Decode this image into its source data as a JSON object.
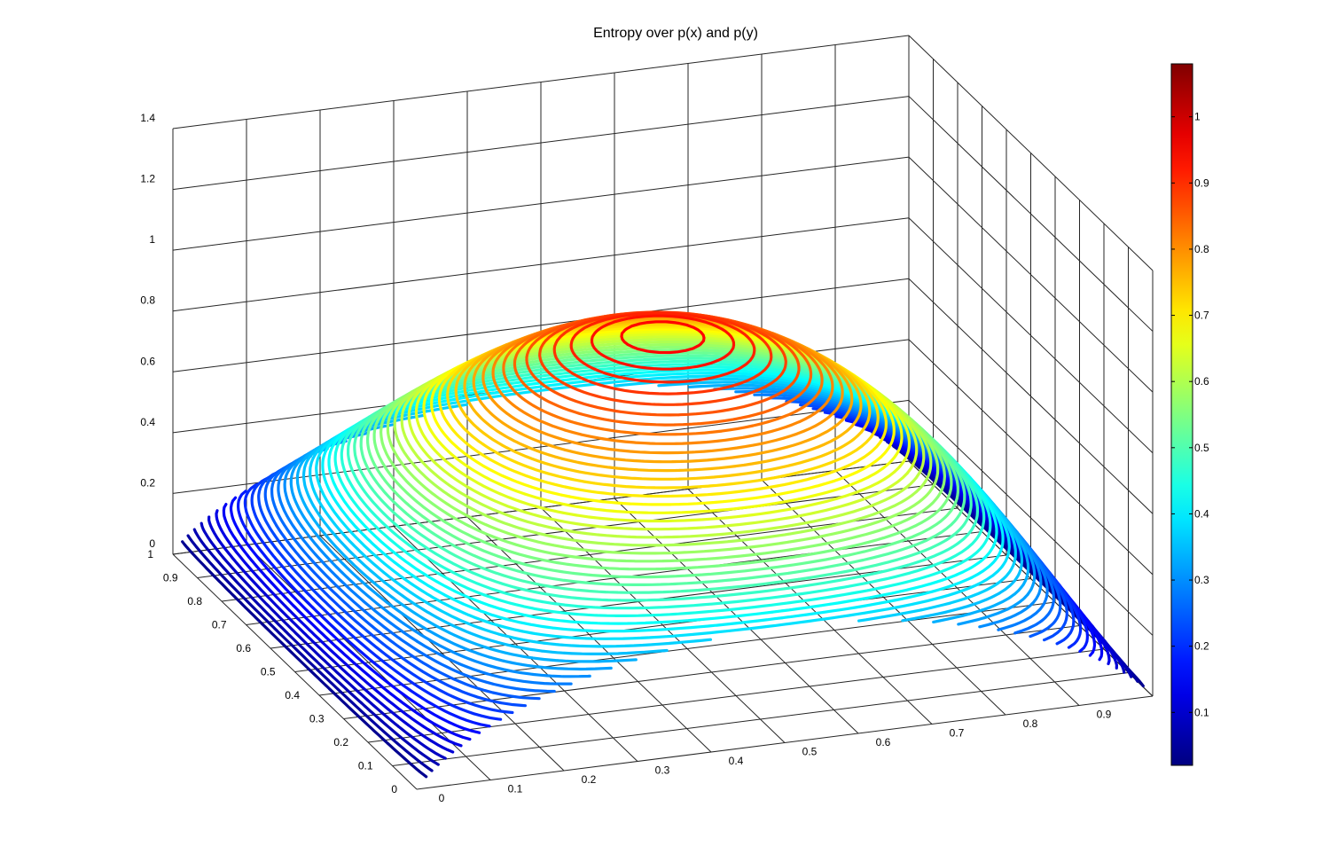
{
  "chart_data": {
    "type": "surface-contour3d",
    "title": "Entropy over p(x) and p(y)",
    "xlabel": "",
    "ylabel": "",
    "zlabel": "",
    "x_ticks": [
      "0",
      "0.1",
      "0.2",
      "0.3",
      "0.4",
      "0.5",
      "0.6",
      "0.7",
      "0.8",
      "0.9"
    ],
    "y_ticks": [
      "0",
      "0.1",
      "0.2",
      "0.3",
      "0.4",
      "0.5",
      "0.6",
      "0.7",
      "0.8",
      "0.9",
      "1"
    ],
    "z_ticks": [
      "0",
      "0.2",
      "0.4",
      "0.6",
      "0.8",
      "1",
      "1.2",
      "1.4"
    ],
    "xlim": [
      0,
      1
    ],
    "ylim": [
      0,
      1
    ],
    "zlim": [
      0,
      1.4
    ],
    "colormap": "jet",
    "colorbar": {
      "range": [
        0.02,
        1.08
      ],
      "ticks": [
        "0.1",
        "0.2",
        "0.3",
        "0.4",
        "0.5",
        "0.6",
        "0.7",
        "0.8",
        "0.9",
        "1"
      ],
      "placement": "right"
    },
    "surface": "z = -(x*ln(x) + (1-x)*ln(1-x)) + small y-coupling; maximum about 1.08 near x=0.5, y=0.45",
    "contour_levels": 60,
    "grid": true
  }
}
